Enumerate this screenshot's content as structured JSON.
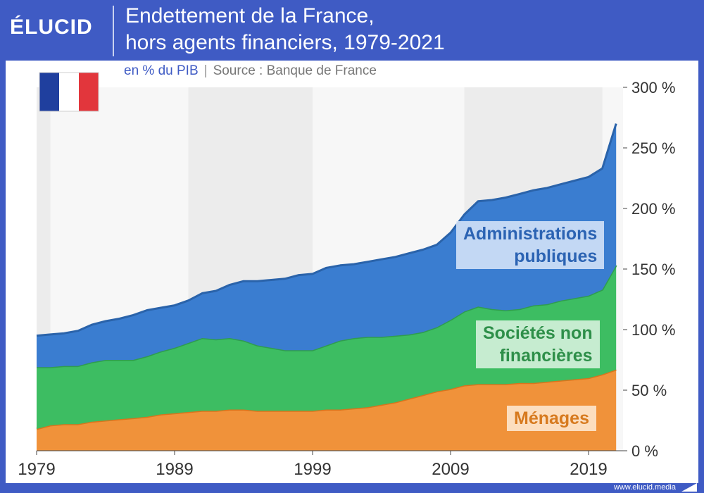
{
  "header": {
    "logo": "ÉLUCID",
    "title_line1": "Endettement de la France,",
    "title_line2": "hors agents financiers, 1979-2021",
    "subtitle_unit": "en % du PIB",
    "subtitle_sep": "|",
    "subtitle_source": "Source : Banque de France"
  },
  "footer": {
    "url": "www.elucid.media"
  },
  "colors": {
    "menages": "#f0923a",
    "societes": "#3dbd62",
    "admin": "#3a7dd0",
    "menages_text": "#d77a1e",
    "societes_text": "#2e8f49",
    "admin_text": "#2b63b3"
  },
  "chart_data": {
    "type": "area",
    "stacked": true,
    "x": [
      1979,
      1980,
      1981,
      1982,
      1983,
      1984,
      1985,
      1986,
      1987,
      1988,
      1989,
      1990,
      1991,
      1992,
      1993,
      1994,
      1995,
      1996,
      1997,
      1998,
      1999,
      2000,
      2001,
      2002,
      2003,
      2004,
      2005,
      2006,
      2007,
      2008,
      2009,
      2010,
      2011,
      2012,
      2013,
      2014,
      2015,
      2016,
      2017,
      2018,
      2019,
      2020,
      2021
    ],
    "series": [
      {
        "name": "Ménages",
        "values": [
          18,
          21,
          22,
          22,
          24,
          25,
          26,
          27,
          28,
          30,
          31,
          32,
          33,
          33,
          34,
          34,
          33,
          33,
          33,
          33,
          33,
          34,
          34,
          35,
          36,
          38,
          40,
          43,
          46,
          49,
          51,
          54,
          55,
          55,
          55,
          56,
          56,
          57,
          58,
          59,
          60,
          63,
          67
        ]
      },
      {
        "name": "Sociétés non financières",
        "values": [
          51,
          48,
          48,
          48,
          49,
          50,
          49,
          48,
          50,
          52,
          54,
          57,
          60,
          59,
          59,
          57,
          54,
          52,
          50,
          50,
          50,
          53,
          57,
          58,
          58,
          56,
          55,
          53,
          52,
          53,
          57,
          61,
          64,
          62,
          61,
          61,
          64,
          64,
          66,
          67,
          68,
          70,
          86
        ]
      },
      {
        "name": "Administrations publiques",
        "values": [
          26,
          27,
          27,
          29,
          31,
          32,
          34,
          37,
          38,
          36,
          35,
          35,
          37,
          40,
          44,
          49,
          53,
          56,
          59,
          62,
          63,
          64,
          62,
          61,
          62,
          64,
          65,
          67,
          68,
          68,
          72,
          80,
          87,
          90,
          93,
          95,
          95,
          96,
          96,
          97,
          98,
          100,
          117
        ]
      }
    ],
    "ylim": [
      0,
      300
    ],
    "yticks": [
      0,
      50,
      100,
      150,
      200,
      250,
      300
    ],
    "ytick_labels": [
      "0 %",
      "50 %",
      "100 %",
      "150 %",
      "200 %",
      "250 %",
      "300 %"
    ],
    "xticks": [
      1979,
      1989,
      1999,
      2009,
      2019
    ],
    "xtick_labels": [
      "1979",
      "1989",
      "1999",
      "2009",
      "2019"
    ],
    "shaded_bands": [
      [
        1979,
        1980
      ],
      [
        1990,
        1999
      ],
      [
        2010,
        2020
      ]
    ],
    "labels": {
      "admin_line1": "Administrations",
      "admin_line2": "publiques",
      "societes_line1": "Sociétés non",
      "societes_line2": "financières",
      "menages": "Ménages"
    },
    "legend": "in-chart labels",
    "grid": false
  }
}
